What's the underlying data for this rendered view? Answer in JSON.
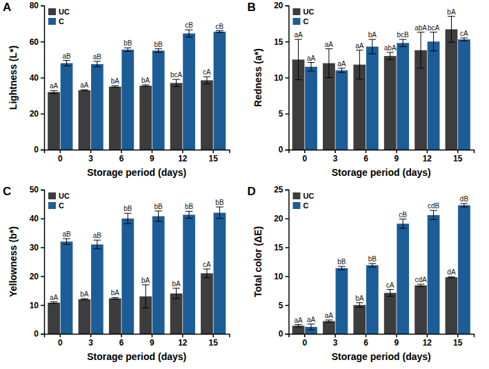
{
  "chart_data": [
    {
      "type": "bar",
      "title": "A",
      "x_label": "Storage period (days)",
      "y_label": "Lightness (L*)",
      "categories": [
        "0",
        "3",
        "6",
        "9",
        "12",
        "15"
      ],
      "ylim": [
        0,
        80
      ],
      "yticks": [
        0,
        20,
        40,
        60,
        80
      ],
      "grid": false,
      "legend": "top-left",
      "series": [
        {
          "name": "UC",
          "color": "#3d3d3d",
          "values": [
            32,
            33,
            35,
            35.5,
            37,
            38.5
          ],
          "error": [
            0.8,
            0.3,
            0.5,
            0.5,
            2,
            2
          ],
          "annotations": [
            "aA",
            "aA",
            "bA",
            "bA",
            "bcA",
            "cA"
          ]
        },
        {
          "name": "C",
          "color": "#1c5d98",
          "values": [
            48,
            47.5,
            55.5,
            55,
            64.5,
            65.5
          ],
          "error": [
            1.5,
            1.5,
            1,
            1,
            2,
            0.5
          ],
          "annotations": [
            "aB",
            "aB",
            "bB",
            "bB",
            "cB",
            "cB"
          ]
        }
      ]
    },
    {
      "type": "bar",
      "title": "B",
      "x_label": "Storage period (days)",
      "y_label": "Redness (a*)",
      "categories": [
        "0",
        "3",
        "6",
        "9",
        "12",
        "15"
      ],
      "ylim": [
        0,
        20
      ],
      "yticks": [
        0,
        5,
        10,
        15,
        20
      ],
      "grid": false,
      "legend": "top-left",
      "series": [
        {
          "name": "UC",
          "color": "#3d3d3d",
          "values": [
            12.5,
            12,
            11.8,
            13,
            13.8,
            16.7
          ],
          "error": [
            2.8,
            2,
            2,
            0.5,
            2.5,
            1.8
          ],
          "annotations": [
            "aA",
            "aA",
            "aA",
            "abA",
            "abA",
            "bA"
          ]
        },
        {
          "name": "C",
          "color": "#1c5d98",
          "values": [
            11.5,
            11,
            14.3,
            14.8,
            15,
            15.3
          ],
          "error": [
            0.6,
            0.3,
            1,
            0.5,
            1.3,
            0.2
          ],
          "annotations": [
            "aA",
            "aA",
            "bA",
            "bcB",
            "bcA",
            "cA"
          ]
        }
      ]
    },
    {
      "type": "bar",
      "title": "C",
      "x_label": "Storage period (days)",
      "y_label": "Yellowness (b*)",
      "categories": [
        "0",
        "3",
        "6",
        "9",
        "12",
        "15"
      ],
      "ylim": [
        0,
        50
      ],
      "yticks": [
        0,
        10,
        20,
        30,
        40,
        50
      ],
      "grid": false,
      "legend": "top-left",
      "series": [
        {
          "name": "UC",
          "color": "#3d3d3d",
          "values": [
            10.8,
            12,
            12.3,
            13,
            14,
            21
          ],
          "error": [
            0.3,
            0.2,
            0.3,
            4,
            1.8,
            1.5
          ],
          "annotations": [
            "aA",
            "bA",
            "bA",
            "bA",
            "bA",
            "cA"
          ]
        },
        {
          "name": "C",
          "color": "#1c5d98",
          "values": [
            32,
            31,
            40,
            40.8,
            41.3,
            42
          ],
          "error": [
            1,
            1.5,
            1.8,
            1.8,
            1.2,
            2
          ],
          "annotations": [
            "aB",
            "aB",
            "bB",
            "bB",
            "bB",
            "bB"
          ]
        }
      ]
    },
    {
      "type": "bar",
      "title": "D",
      "x_label": "Storage period (days)",
      "y_label": "Total color (ΔE)",
      "categories": [
        "0",
        "3",
        "6",
        "9",
        "12",
        "15"
      ],
      "ylim": [
        0,
        25
      ],
      "yticks": [
        0,
        5,
        10,
        15,
        20,
        25
      ],
      "grid": false,
      "legend": "top-left",
      "series": [
        {
          "name": "UC",
          "color": "#3d3d3d",
          "values": [
            1.4,
            2.2,
            5,
            7.1,
            8.4,
            9.8
          ],
          "error": [
            0.2,
            0.2,
            0.4,
            0.6,
            0.2,
            0.1
          ],
          "annotations": [
            "aA",
            "aA",
            "bA",
            "cA",
            "cdA",
            "dA"
          ]
        },
        {
          "name": "C",
          "color": "#1c5d98",
          "values": [
            1.2,
            11.4,
            11.9,
            19.1,
            20.6,
            22.3
          ],
          "error": [
            0.5,
            0.3,
            0.3,
            0.8,
            0.8,
            0.3
          ],
          "annotations": [
            "aA",
            "bB",
            "bB",
            "cB",
            "cdB",
            "dB"
          ]
        }
      ]
    }
  ]
}
